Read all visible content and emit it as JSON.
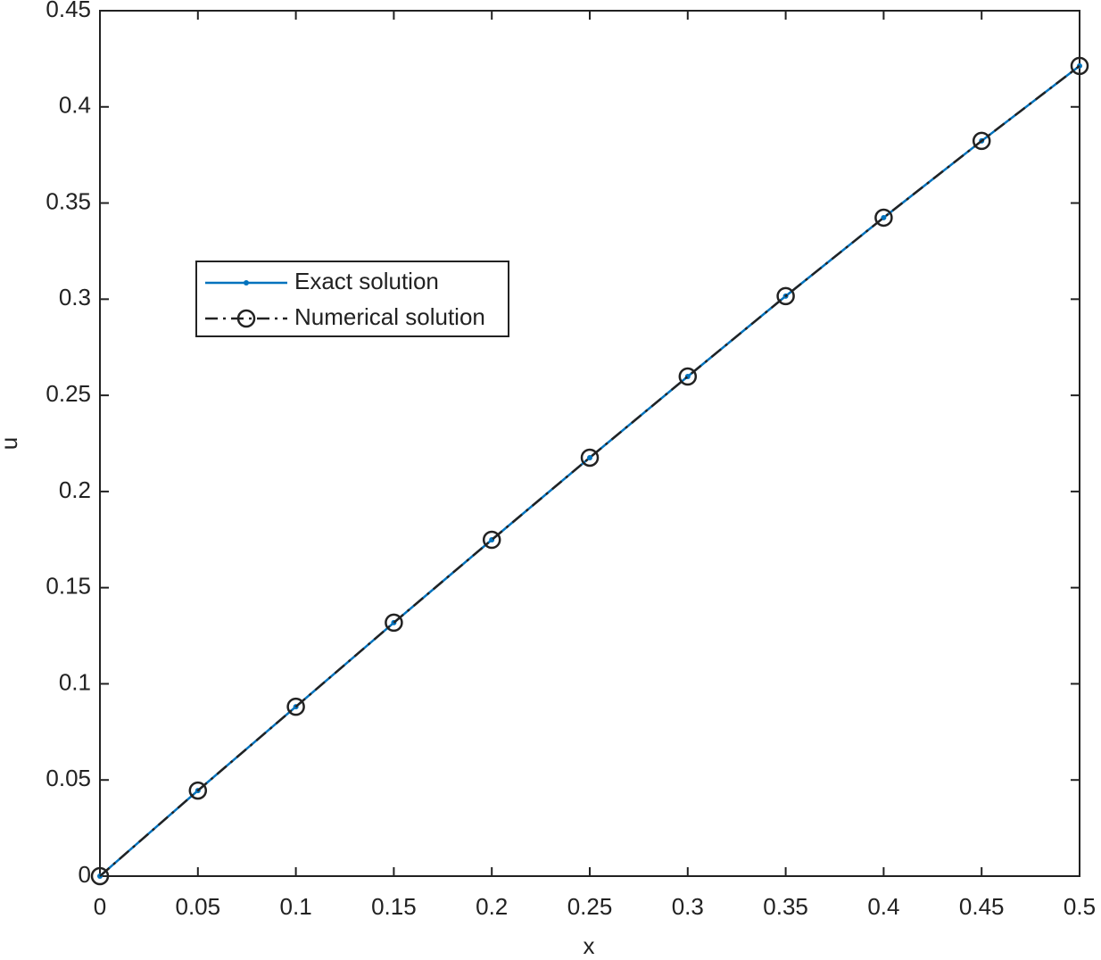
{
  "chart_data": {
    "type": "line",
    "xlabel": "x",
    "ylabel": "u",
    "x": [
      0,
      0.05,
      0.1,
      0.15,
      0.2,
      0.25,
      0.3,
      0.35,
      0.4,
      0.45,
      0.5
    ],
    "series": [
      {
        "name": "Exact solution",
        "color": "#0072bd",
        "line": "solid",
        "marker": "dot",
        "values": [
          0,
          0.0445,
          0.0881,
          0.1318,
          0.1749,
          0.2176,
          0.2598,
          0.3016,
          0.3424,
          0.3823,
          0.4213
        ]
      },
      {
        "name": "Numerical solution",
        "color": "#222222",
        "line": "dashdot",
        "marker": "circle",
        "values": [
          0,
          0.0445,
          0.0881,
          0.1318,
          0.1749,
          0.2176,
          0.2598,
          0.3016,
          0.3424,
          0.3823,
          0.4213
        ]
      }
    ],
    "xlim": [
      0,
      0.5
    ],
    "xticks": [
      0,
      0.05,
      0.1,
      0.15,
      0.2,
      0.25,
      0.3,
      0.35,
      0.4,
      0.45,
      0.5
    ],
    "ylim": [
      0,
      0.45
    ],
    "yticks": [
      0,
      0.05,
      0.1,
      0.15,
      0.2,
      0.25,
      0.3,
      0.35,
      0.4,
      0.45
    ],
    "legend": "upper-left",
    "grid": false
  }
}
